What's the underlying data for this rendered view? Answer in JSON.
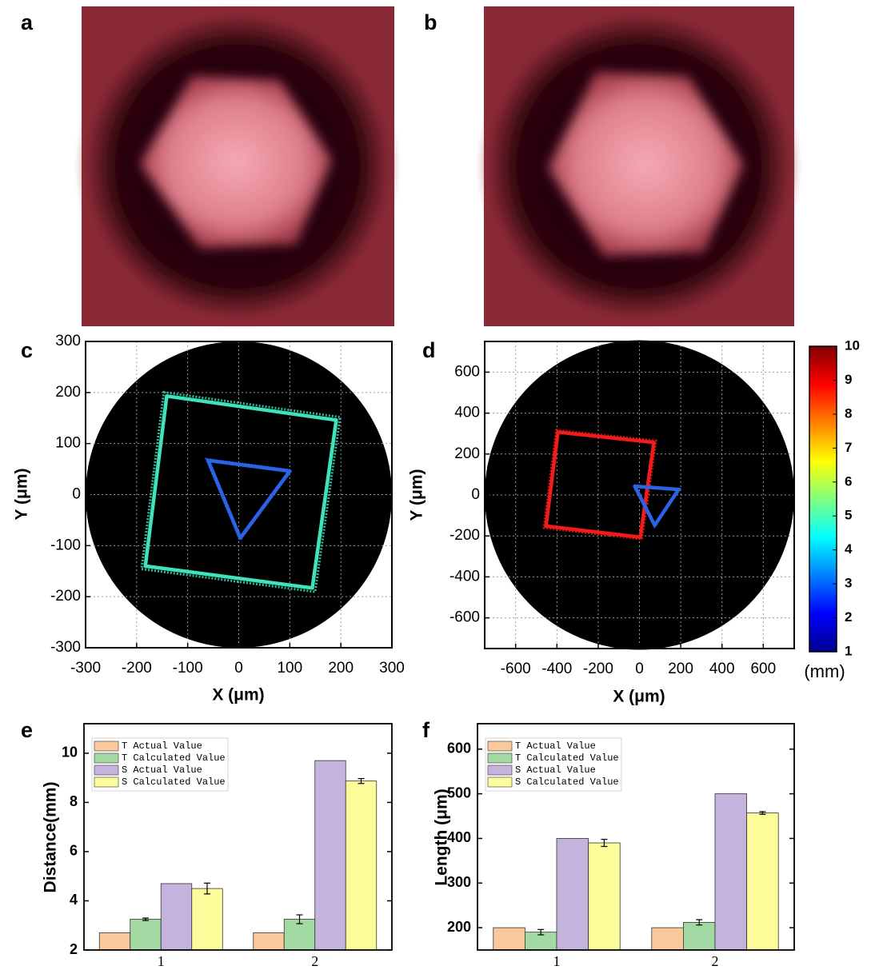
{
  "panels": [
    {
      "label": "a"
    },
    {
      "label": "b"
    }
  ],
  "chart_data": [
    {
      "type": "polygon",
      "panel_label": "c",
      "x_label": "X (μm)",
      "y_label": "Y (μm)",
      "xlim": [
        -300,
        300
      ],
      "ylim": [
        -300,
        300
      ],
      "xticks": [
        -300,
        -200,
        -100,
        0,
        100,
        200,
        300
      ],
      "yticks": [
        -300,
        -200,
        -100,
        0,
        100,
        200,
        300
      ],
      "grid": true,
      "series": [
        {
          "color": "#3fe3bb",
          "x": [
            -141,
            191,
            144,
            -183
          ],
          "y": [
            193,
            146,
            -183,
            -140
          ]
        },
        {
          "color": "#2b63e6",
          "x": [
            -60,
            100,
            3
          ],
          "y": [
            67,
            46,
            -85
          ]
        }
      ]
    },
    {
      "type": "polygon",
      "panel_label": "d",
      "x_label": "X (μm)",
      "y_label": "Y (μm)",
      "xlim": [
        -750,
        750
      ],
      "ylim": [
        -750,
        750
      ],
      "xticks": [
        -600,
        -400,
        -200,
        0,
        200,
        400,
        600
      ],
      "yticks": [
        -600,
        -400,
        -200,
        0,
        200,
        400,
        600
      ],
      "grid": true,
      "series": [
        {
          "color": "#f01c1c",
          "x": [
            -395,
            70,
            4,
            -453
          ],
          "y": [
            307,
            257,
            -206,
            -152
          ]
        },
        {
          "color": "#2b63e6",
          "x": [
            -23,
            190,
            74
          ],
          "y": [
            43,
            27,
            -148
          ]
        }
      ]
    },
    {
      "type": "colorbar",
      "unit_label": "(mm)",
      "ylim": [
        1,
        10
      ],
      "yticks": [
        1,
        2,
        3,
        4,
        5,
        6,
        7,
        8,
        9,
        10
      ],
      "colors": [
        "#00008f",
        "#0000ff",
        "#0080ff",
        "#00ffff",
        "#80ff80",
        "#ffff00",
        "#ff8000",
        "#ff0000",
        "#800000"
      ]
    },
    {
      "type": "bar",
      "panel_label": "e",
      "y_label": "Distance(mm)",
      "categories": [
        "1",
        "2"
      ],
      "ylim": [
        2,
        11.2
      ],
      "yticks": [
        2,
        4,
        6,
        8,
        10
      ],
      "legend": "upper left",
      "series": [
        {
          "name": "T Actual Value",
          "color": "#f9c89b",
          "values": [
            2.7,
            2.7
          ]
        },
        {
          "name": "T Calculated Value",
          "color": "#a3d9a3",
          "values": [
            3.25,
            3.25
          ],
          "errors": [
            0.05,
            0.18
          ]
        },
        {
          "name": "S Actual Value",
          "color": "#c3b3dd",
          "values": [
            4.7,
            9.7
          ]
        },
        {
          "name": "S Calculated Value",
          "color": "#fcfc9b",
          "values": [
            4.5,
            8.87
          ],
          "errors": [
            0.22,
            0.1
          ]
        }
      ]
    },
    {
      "type": "bar",
      "panel_label": "f",
      "y_label": "Length (μm)",
      "categories": [
        "1",
        "2"
      ],
      "ylim": [
        150,
        657
      ],
      "yticks": [
        200,
        300,
        400,
        500,
        600
      ],
      "legend": "upper left",
      "series": [
        {
          "name": "T Actual Value",
          "color": "#f9c89b",
          "values": [
            200,
            200
          ]
        },
        {
          "name": "T Calculated Value",
          "color": "#a3d9a3",
          "values": [
            190,
            212
          ],
          "errors": [
            6,
            6
          ]
        },
        {
          "name": "S Actual Value",
          "color": "#c3b3dd",
          "values": [
            400,
            500
          ]
        },
        {
          "name": "S Calculated Value",
          "color": "#fcfc9b",
          "values": [
            390,
            457
          ],
          "errors": [
            8,
            3
          ]
        }
      ]
    }
  ]
}
